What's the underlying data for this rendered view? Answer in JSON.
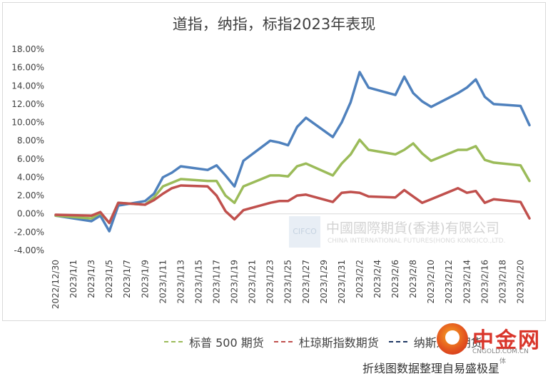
{
  "title": "道指，纳指，标指2023年表现",
  "watermark": {
    "box_text": "CIFCO",
    "name": "中國國際期貨(香港)有限公司",
    "name_en": "CHINA INTERNATIONAL FUTURES(HONG KONG)CO.,LTD."
  },
  "brand": {
    "name": "中金网",
    "url": "CNGOLD.COM.CN",
    "tag": "体"
  },
  "caption": "折线图数据整理自易盛极星",
  "colors": {
    "sp500": "#9bbb59",
    "dow": "#c0504d",
    "nasdaq": "#4f81bd"
  },
  "chart_data": {
    "type": "line",
    "title": "道指，纳指，标指2023年表现",
    "ylim": [
      -4,
      18
    ],
    "yticks": [
      "18.00%",
      "16.00%",
      "14.00%",
      "12.00%",
      "10.00%",
      "8.00%",
      "6.00%",
      "4.00%",
      "2.00%",
      "0.00%",
      "-2.00%",
      "-4.00%"
    ],
    "x_labels": [
      "2022/12/30",
      "2023/1/1",
      "2023/1/3",
      "2023/1/5",
      "2023/1/7",
      "2023/1/9",
      "2023/1/11",
      "2023/1/13",
      "2023/1/15",
      "2023/1/17",
      "2023/1/19",
      "2023/1/21",
      "2023/1/23",
      "2023/1/25",
      "2023/1/27",
      "2023/1/29",
      "2023/1/31",
      "2023/2/2",
      "2023/2/4",
      "2023/2/6",
      "2023/2/8",
      "2023/2/10",
      "2023/2/12",
      "2023/2/14",
      "2023/2/16",
      "2023/2/18",
      "2023/2/20"
    ],
    "grid": false,
    "legend_position": "bottom",
    "x": [
      "2022/12/30",
      "2023/1/3",
      "2023/1/4",
      "2023/1/5",
      "2023/1/6",
      "2023/1/9",
      "2023/1/10",
      "2023/1/11",
      "2023/1/12",
      "2023/1/13",
      "2023/1/16",
      "2023/1/17",
      "2023/1/18",
      "2023/1/19",
      "2023/1/20",
      "2023/1/23",
      "2023/1/24",
      "2023/1/25",
      "2023/1/26",
      "2023/1/27",
      "2023/1/30",
      "2023/1/31",
      "2023/2/1",
      "2023/2/2",
      "2023/2/3",
      "2023/2/6",
      "2023/2/7",
      "2023/2/8",
      "2023/2/9",
      "2023/2/10",
      "2023/2/13",
      "2023/2/14",
      "2023/2/15",
      "2023/2/16",
      "2023/2/17",
      "2023/2/20",
      "2023/2/21"
    ],
    "series": [
      {
        "name": "标普 500 期货",
        "key": "sp500",
        "values": [
          -0.2,
          -0.5,
          0.1,
          -1.0,
          1.2,
          1.0,
          1.8,
          3.0,
          3.4,
          3.8,
          3.6,
          3.6,
          2.0,
          1.2,
          3.0,
          4.2,
          4.2,
          4.1,
          5.2,
          5.5,
          4.2,
          5.5,
          6.5,
          8.1,
          7.0,
          6.5,
          7.0,
          7.7,
          6.6,
          5.8,
          7.0,
          7.0,
          7.4,
          5.9,
          5.6,
          5.3,
          3.6
        ]
      },
      {
        "name": "杜琼斯指数期货",
        "key": "dow",
        "values": [
          -0.1,
          -0.2,
          0.2,
          -1.0,
          1.2,
          1.0,
          1.5,
          2.2,
          2.8,
          3.1,
          3.0,
          2.0,
          0.3,
          -0.6,
          0.4,
          1.2,
          1.4,
          1.4,
          2.0,
          2.1,
          1.3,
          2.3,
          2.4,
          2.3,
          1.9,
          1.8,
          2.6,
          1.9,
          1.2,
          1.6,
          2.8,
          2.3,
          2.5,
          1.2,
          1.6,
          1.3,
          -0.5
        ]
      },
      {
        "name": "纳斯达克期货",
        "key": "nasdaq",
        "values": [
          -0.2,
          -0.8,
          -0.2,
          -1.9,
          0.9,
          1.4,
          2.2,
          4.0,
          4.5,
          5.2,
          4.8,
          5.3,
          4.2,
          3.0,
          5.8,
          8.0,
          7.8,
          7.5,
          9.5,
          10.5,
          8.4,
          10.0,
          12.2,
          15.5,
          13.8,
          13.0,
          15.0,
          13.2,
          12.3,
          11.7,
          13.2,
          13.8,
          14.7,
          12.8,
          12.0,
          11.8,
          9.7
        ]
      }
    ]
  }
}
